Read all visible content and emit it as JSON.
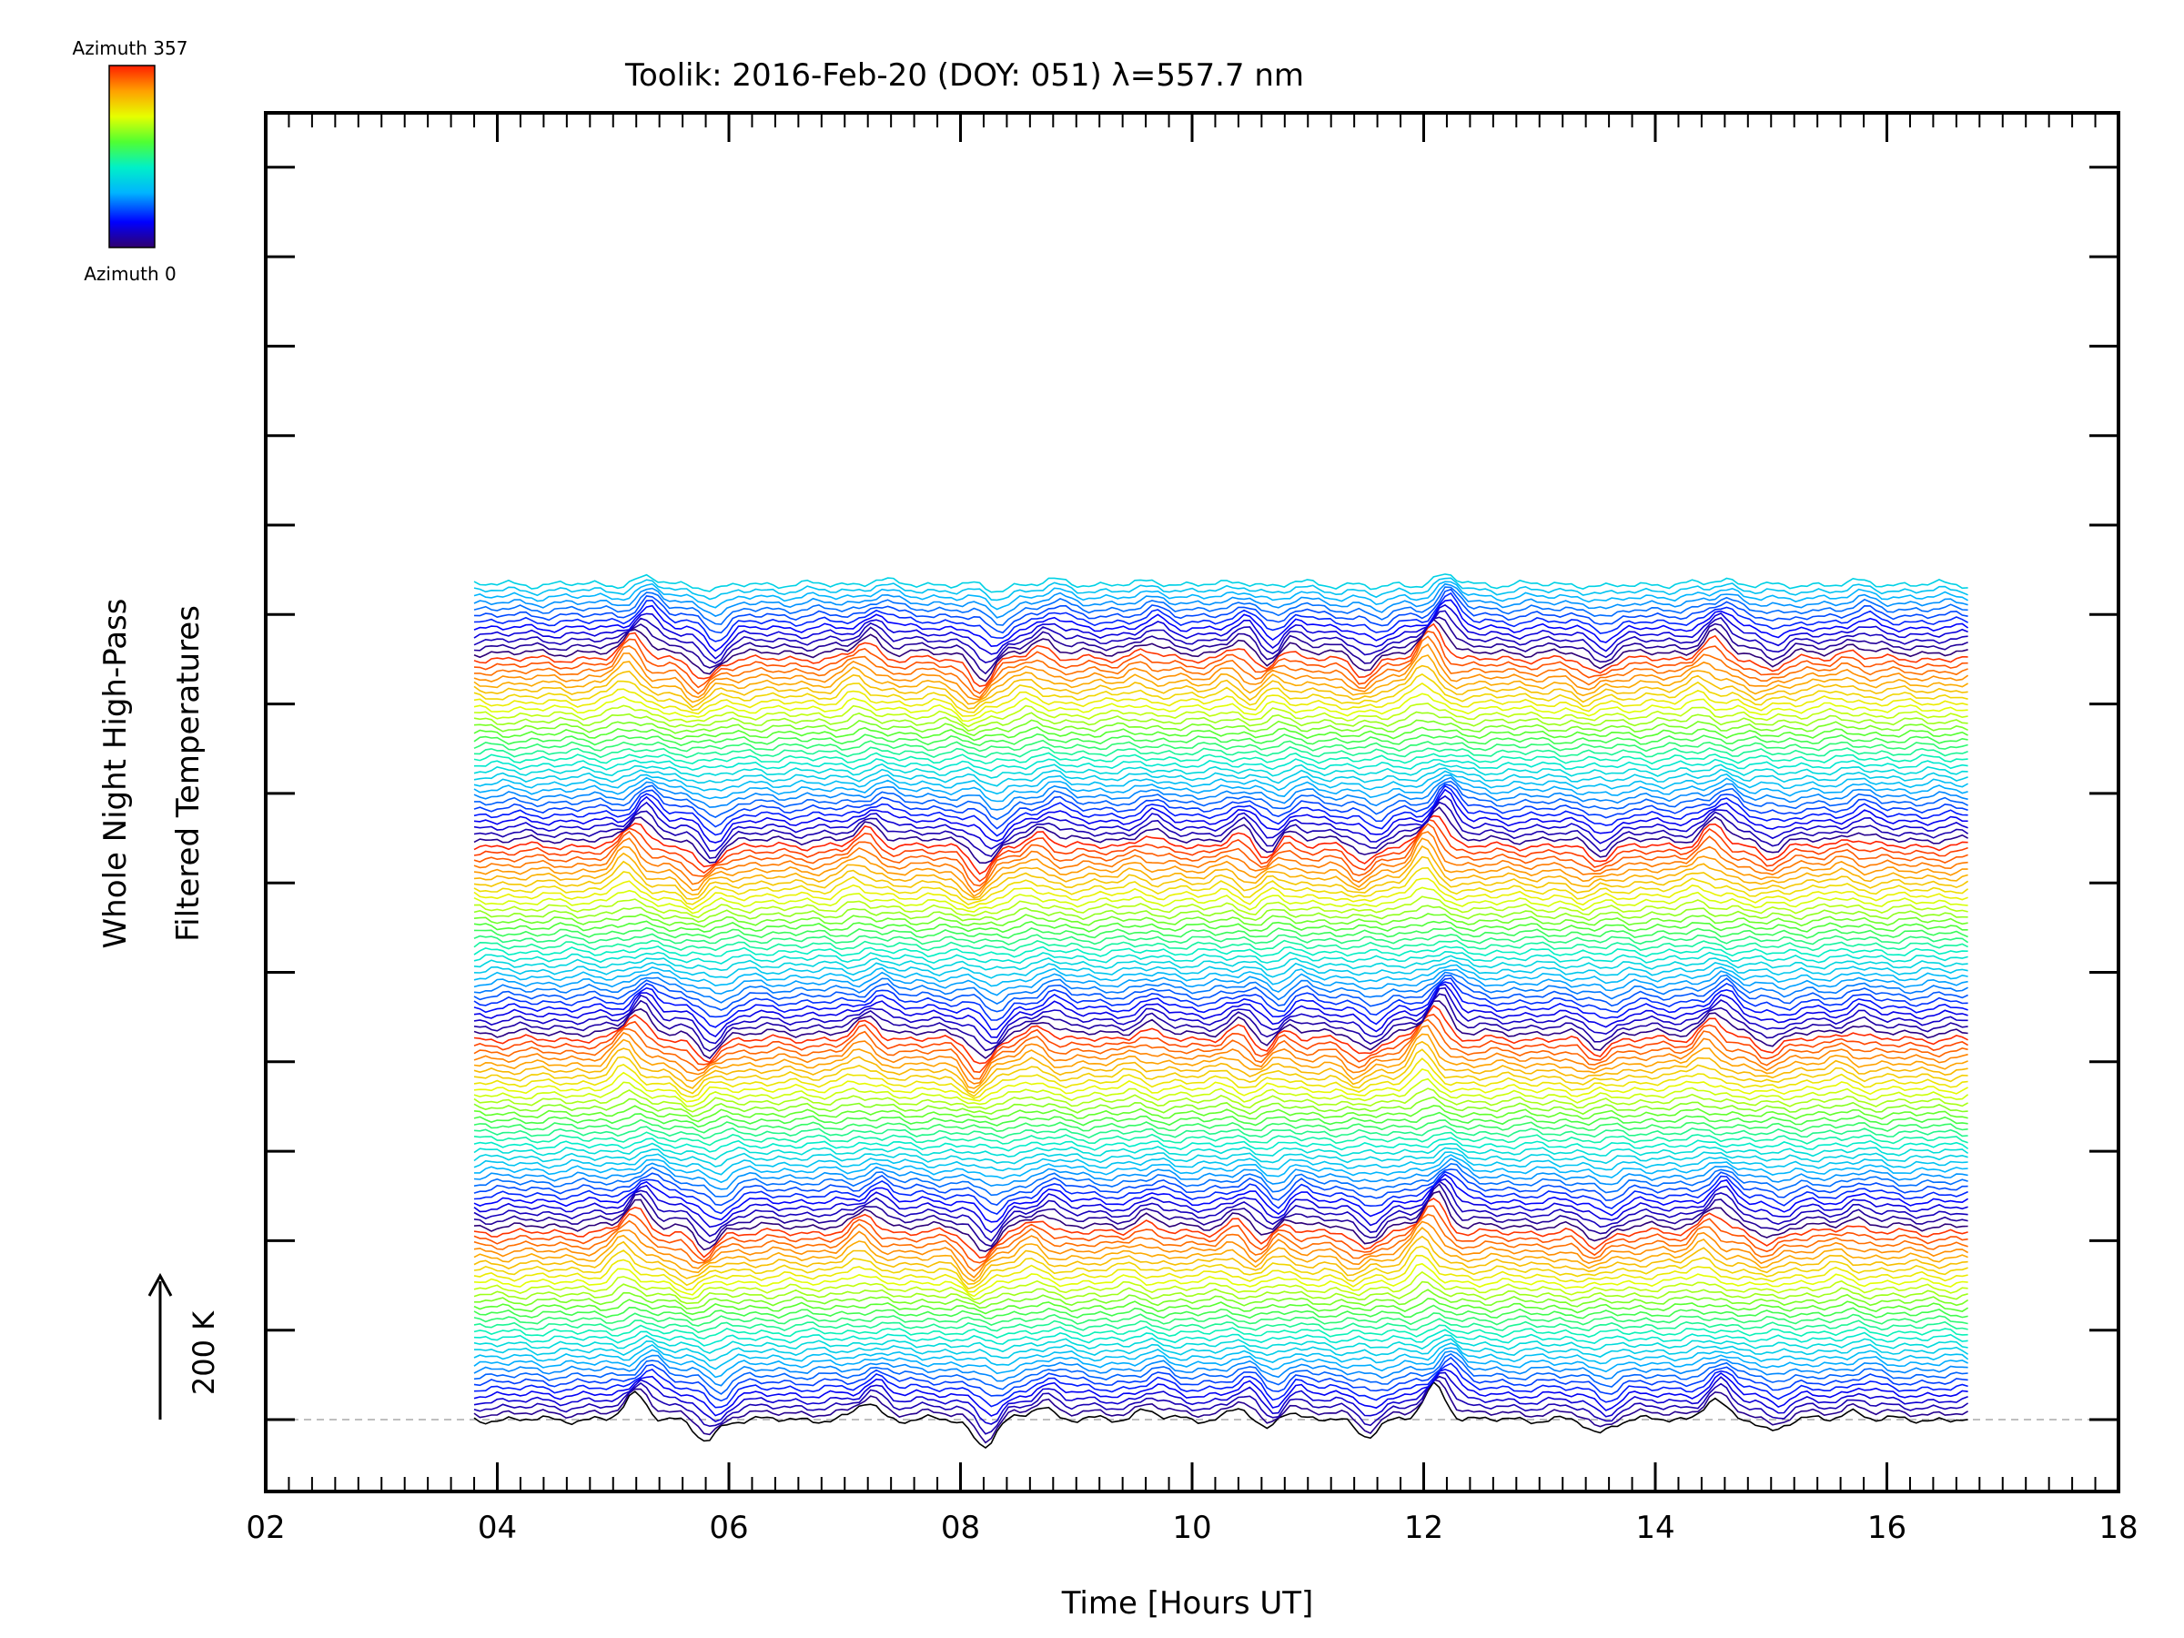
{
  "chart_data": {
    "type": "line",
    "title": "Toolik: 2016-Feb-20 (DOY: 051) λ=557.7 nm",
    "xlabel": "Time [Hours UT]",
    "ylabel_lines": [
      "Whole Night High-Pass",
      "Filtered Temperatures"
    ],
    "xlim": [
      2,
      18
    ],
    "x_ticks": [
      "02",
      "04",
      "06",
      "08",
      "10",
      "12",
      "14",
      "16",
      "18"
    ],
    "time_range": [
      3.8,
      16.7
    ],
    "scale_bar_label": "200 K",
    "colorbar": {
      "top_label": "Azimuth 357",
      "bottom_label": "Azimuth 0",
      "colormap": "rainbow"
    },
    "series_count": 135,
    "azimuth_cycles": 4.4,
    "features": [
      {
        "t": 5.2,
        "amp": 0.75
      },
      {
        "t": 5.8,
        "amp": -0.65
      },
      {
        "t": 7.2,
        "amp": 0.5
      },
      {
        "t": 8.2,
        "amp": -0.75
      },
      {
        "t": 8.7,
        "amp": 0.4
      },
      {
        "t": 9.6,
        "amp": 0.3
      },
      {
        "t": 10.4,
        "amp": 0.35
      },
      {
        "t": 10.65,
        "amp": -0.4
      },
      {
        "t": 10.8,
        "amp": 0.35
      },
      {
        "t": 11.5,
        "amp": -0.45
      },
      {
        "t": 12.1,
        "amp": 1.0
      },
      {
        "t": 13.5,
        "amp": -0.4
      },
      {
        "t": 14.5,
        "amp": 0.6
      },
      {
        "t": 15.0,
        "amp": -0.3
      },
      {
        "t": 15.7,
        "amp": 0.25
      }
    ],
    "colors": {
      "background": "#ffffff",
      "axis": "#000000",
      "baseline": "#aaaaaa"
    }
  }
}
